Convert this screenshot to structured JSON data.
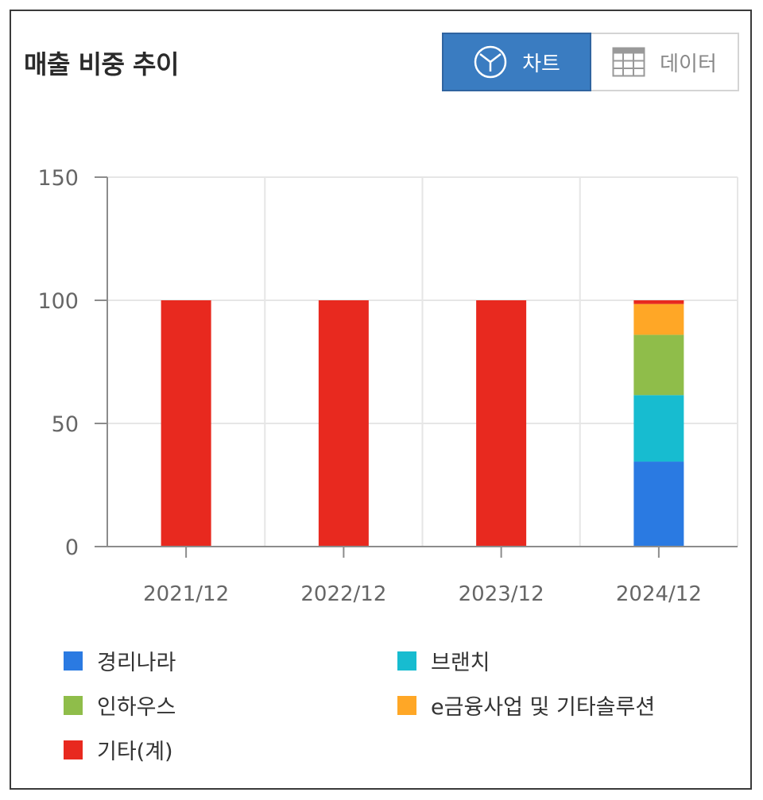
{
  "header": {
    "title": "매출 비중 추이",
    "chart_label": "차트",
    "data_label": "데이터"
  },
  "chart_data": {
    "type": "bar",
    "stacked": true,
    "title": "매출 비중 추이",
    "xlabel": "",
    "ylabel": "",
    "categories": [
      "2021/12",
      "2022/12",
      "2023/12",
      "2024/12"
    ],
    "ylim": [
      0,
      150
    ],
    "yticks": [
      0,
      50,
      100,
      150
    ],
    "grid": true,
    "legend_position": "bottom",
    "series": [
      {
        "name": "경리나라",
        "color": "#2a7ae2",
        "values": [
          0,
          0,
          0,
          34.5
        ]
      },
      {
        "name": "브랜치",
        "color": "#17bcd0",
        "values": [
          0,
          0,
          0,
          27
        ]
      },
      {
        "name": "인하우스",
        "color": "#8fbd4a",
        "values": [
          0,
          0,
          0,
          24.5
        ]
      },
      {
        "name": "e금융사업 및 기타솔루션",
        "color": "#ffa726",
        "values": [
          0,
          0,
          0,
          12.5
        ]
      },
      {
        "name": "기타(계)",
        "color": "#e8291f",
        "values": [
          100,
          100,
          100,
          1.5
        ]
      }
    ]
  }
}
